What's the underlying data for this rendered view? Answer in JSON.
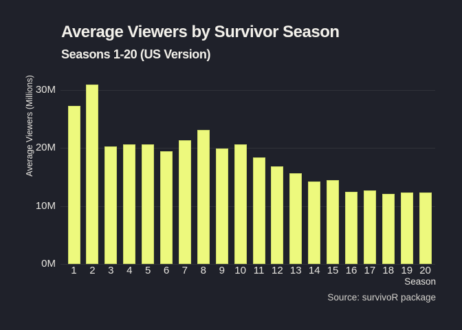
{
  "chart_data": {
    "type": "bar",
    "title": "Average Viewers by Survivor Season",
    "subtitle": "Seasons 1-20 (US Version)",
    "xlabel": "Season",
    "ylabel": "Average Viewers (Millions)",
    "caption": "Source: survivoR package",
    "categories": [
      "1",
      "2",
      "3",
      "4",
      "5",
      "6",
      "7",
      "8",
      "9",
      "10",
      "11",
      "12",
      "13",
      "14",
      "15",
      "16",
      "17",
      "18",
      "19",
      "20"
    ],
    "values": [
      27.3,
      31.0,
      20.3,
      20.6,
      20.6,
      19.5,
      21.4,
      23.1,
      19.9,
      20.6,
      18.4,
      16.8,
      15.7,
      14.2,
      14.5,
      12.5,
      12.7,
      12.1,
      12.3,
      12.4
    ],
    "value_unit": "millions of viewers",
    "ylim": [
      0,
      32
    ],
    "yticks": [
      0,
      10,
      20,
      30
    ],
    "ytick_labels": [
      "0M",
      "10M",
      "20M",
      "30M"
    ],
    "grid": "horizontal",
    "legend_position": "none",
    "colors": {
      "background": "#1f212a",
      "bar": "#edf97d",
      "bar_border": "#cfdd68",
      "title_text": "#f3f1eb",
      "axis_text": "#e5e3de",
      "caption_text": "#d3d1cc",
      "gridline": "rgba(255,255,255,0.08)"
    }
  }
}
